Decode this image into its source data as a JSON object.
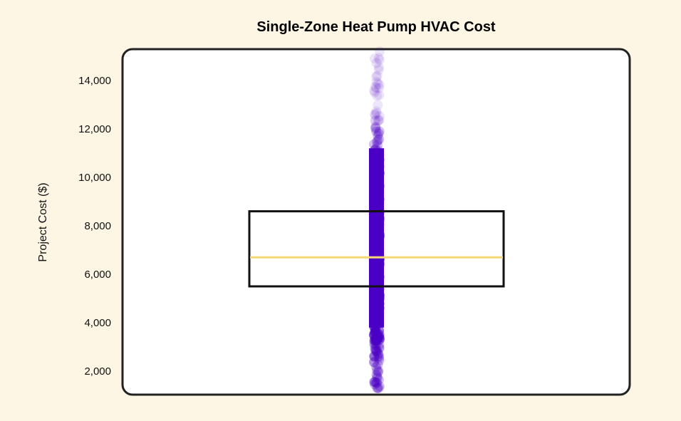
{
  "chart_data": {
    "type": "box-strip",
    "title": "Single-Zone Heat Pump HVAC Cost",
    "xlabel": "",
    "ylabel": "Project Cost ($)",
    "ylim": [
      1000,
      15300
    ],
    "yticks": [
      2000,
      4000,
      6000,
      8000,
      10000,
      12000,
      14000
    ],
    "ytick_labels": [
      "2,000",
      "4,000",
      "6,000",
      "8,000",
      "10,000",
      "12,000",
      "14,000"
    ],
    "grid": false,
    "box": {
      "q1": 5500,
      "median": 6700,
      "q3": 8600
    },
    "points_range": {
      "min": 1300,
      "max": 15200
    },
    "colors": {
      "points": "#4a00c4",
      "box": "#111111",
      "median": "#f7d774",
      "background": "#fdf6e4",
      "plot_bg": "#ffffff"
    }
  }
}
